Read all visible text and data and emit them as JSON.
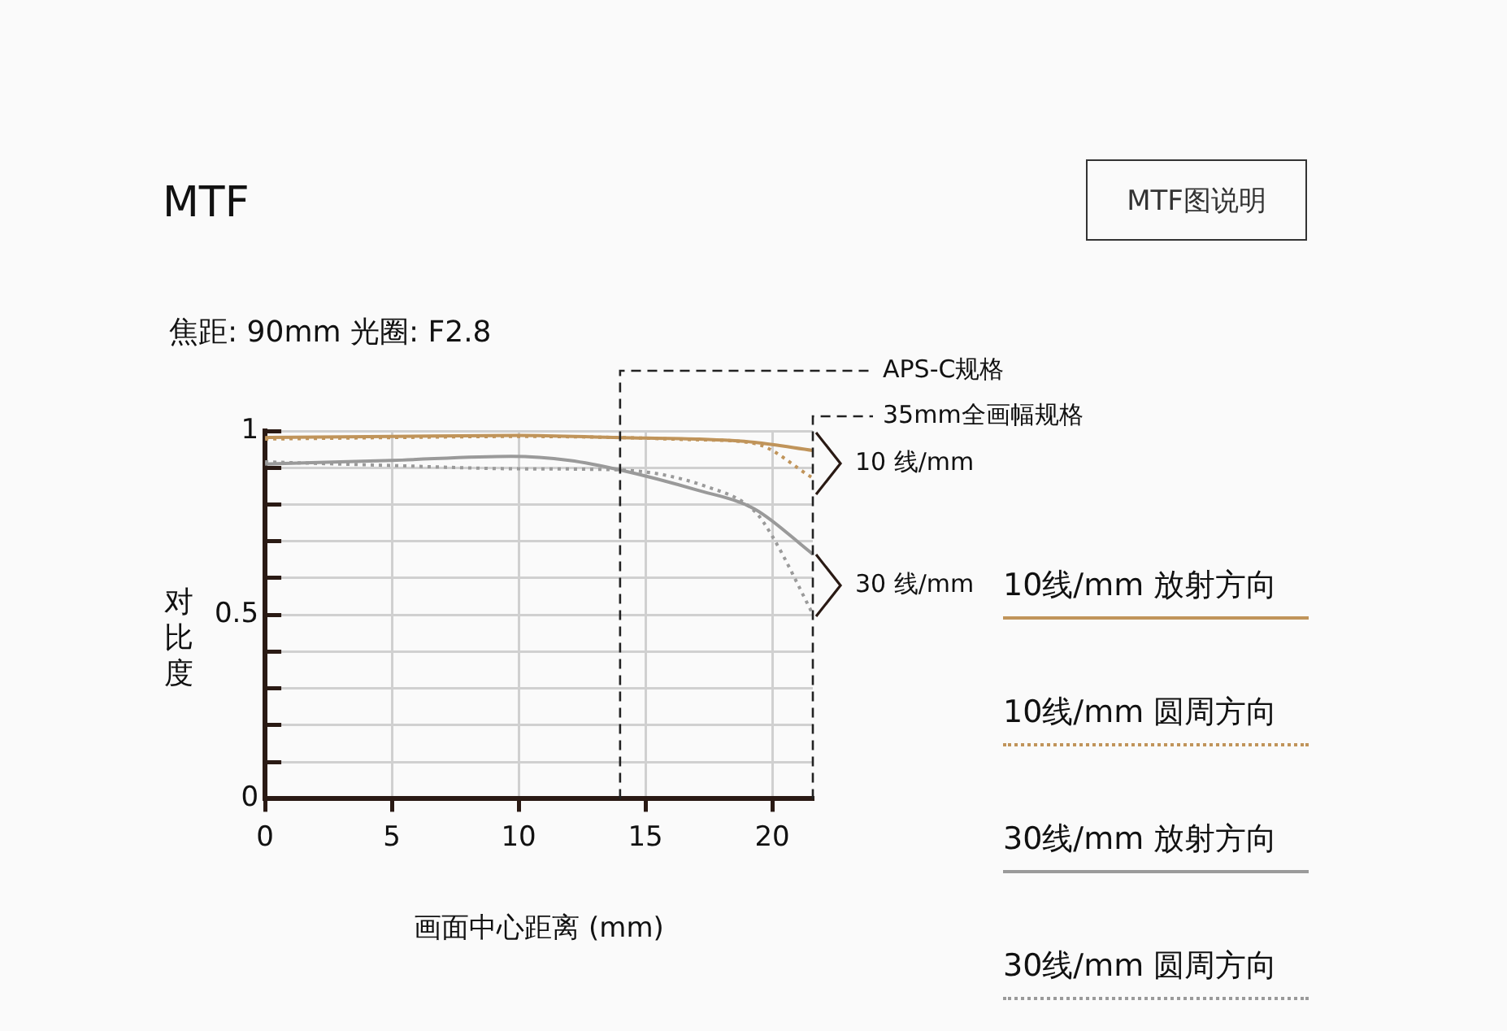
{
  "chart_data": {
    "type": "line",
    "title": "MTF",
    "subtitle": "焦距: 90mm 光圈: F2.8",
    "xlabel": "画面中心距离 (mm)",
    "ylabel": "对比度",
    "series": [
      {
        "name": "10线/mm 放射方向",
        "color": "#c0945a",
        "line_style": "solid",
        "x": [
          0,
          5,
          10,
          14,
          17,
          19.3,
          21.6
        ],
        "values": [
          0.982,
          0.985,
          0.988,
          0.982,
          0.978,
          0.969,
          0.947
        ]
      },
      {
        "name": "10线/mm 圆周方向",
        "color": "#c0945a",
        "line_style": "dotted",
        "x": [
          0,
          5,
          10,
          14,
          17,
          19.3,
          21.6
        ],
        "values": [
          0.978,
          0.982,
          0.985,
          0.982,
          0.976,
          0.966,
          0.872
        ]
      },
      {
        "name": "30线/mm 放射方向",
        "color": "#9a9a9a",
        "line_style": "solid",
        "x": [
          0,
          5,
          9.7,
          12,
          14,
          17,
          19.3,
          21.6
        ],
        "values": [
          0.91,
          0.92,
          0.931,
          0.92,
          0.894,
          0.84,
          0.788,
          0.665
        ]
      },
      {
        "name": "30线/mm 圆周方向",
        "color": "#9a9a9a",
        "line_style": "dotted",
        "x": [
          0,
          5,
          10,
          14,
          17.4,
          19.3,
          20,
          21.6
        ],
        "values": [
          0.916,
          0.906,
          0.897,
          0.894,
          0.849,
          0.782,
          0.714,
          0.502
        ]
      }
    ],
    "xlim": [
      0,
      21.6
    ],
    "xticks": [
      0,
      5,
      10,
      15,
      20
    ],
    "ylim": [
      0,
      1
    ],
    "yticks": [
      0,
      {
        "value": 0.1,
        "label": null
      },
      {
        "value": 0.2,
        "label": null
      },
      {
        "value": 0.3,
        "label": null
      },
      {
        "value": 0.4,
        "label": null
      },
      {
        "value": 0.5,
        "label": "0.5"
      },
      {
        "value": 0.6,
        "label": null
      },
      {
        "value": 0.7,
        "label": null
      },
      {
        "value": 0.8,
        "label": null
      },
      {
        "value": 0.9,
        "label": null
      },
      1
    ],
    "grid": true,
    "legend": "right",
    "marker": "none",
    "ref_lines": [
      {
        "axis": "x",
        "value": 14,
        "label": "APS-C规格",
        "line_style": "dashed",
        "color": "#222222"
      },
      {
        "axis": "x",
        "value": 21.6,
        "label": "35mm全画幅规格",
        "line_style": "dashed",
        "color": "#222222"
      }
    ],
    "annotations": [
      "MTF图说明",
      {
        "text": "10 线/mm",
        "x": 21.6,
        "y": 0.91
      },
      {
        "text": "30 线/mm",
        "x": 21.6,
        "y": 0.58
      }
    ]
  }
}
